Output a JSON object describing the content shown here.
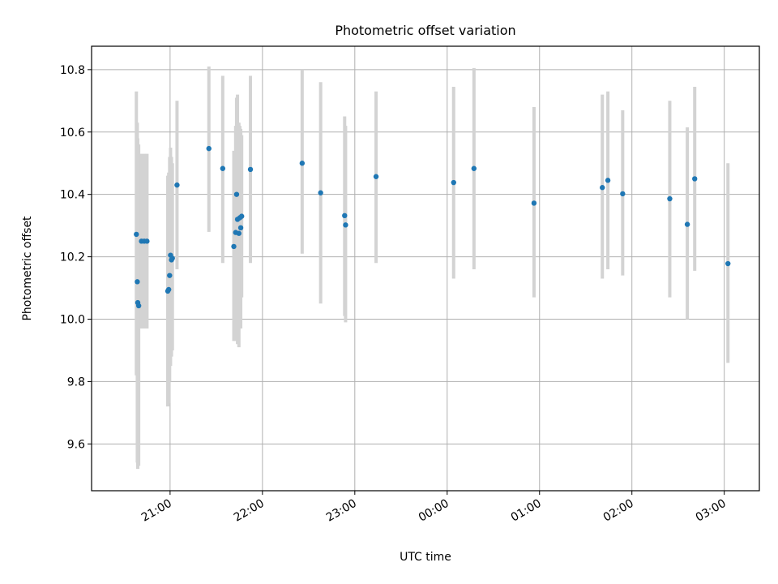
{
  "chart_data": {
    "type": "scatter",
    "title": "Photometric offset variation",
    "xlabel": "UTC time",
    "ylabel": "Photometric offset",
    "x_unit": "hours from 20:00 UTC",
    "xlim": [
      0.15,
      7.38
    ],
    "ylim": [
      9.45,
      10.875
    ],
    "x_ticks": [
      {
        "value": 1,
        "label": "21:00"
      },
      {
        "value": 2,
        "label": "22:00"
      },
      {
        "value": 3,
        "label": "23:00"
      },
      {
        "value": 4,
        "label": "00:00"
      },
      {
        "value": 5,
        "label": "01:00"
      },
      {
        "value": 6,
        "label": "02:00"
      },
      {
        "value": 7,
        "label": "03:00"
      }
    ],
    "y_ticks": [
      {
        "value": 9.6,
        "label": "9.6"
      },
      {
        "value": 9.8,
        "label": "9.8"
      },
      {
        "value": 10.0,
        "label": "10.0"
      },
      {
        "value": 10.2,
        "label": "10.2"
      },
      {
        "value": 10.4,
        "label": "10.4"
      },
      {
        "value": 10.6,
        "label": "10.6"
      },
      {
        "value": 10.8,
        "label": "10.8"
      }
    ],
    "grid": true,
    "marker_color": "#1f77b4",
    "errorbar_color": "#d3d3d3",
    "points": [
      {
        "x": 0.635,
        "y": 10.272,
        "lo": 9.82,
        "hi": 10.73
      },
      {
        "x": 0.645,
        "y": 10.12,
        "lo": 9.54,
        "hi": 10.63
      },
      {
        "x": 0.65,
        "y": 10.053,
        "lo": 9.52,
        "hi": 10.58
      },
      {
        "x": 0.66,
        "y": 10.043,
        "lo": 9.53,
        "hi": 10.56
      },
      {
        "x": 0.69,
        "y": 10.25,
        "lo": 9.97,
        "hi": 10.53
      },
      {
        "x": 0.72,
        "y": 10.25,
        "lo": 9.97,
        "hi": 10.53
      },
      {
        "x": 0.75,
        "y": 10.25,
        "lo": 9.97,
        "hi": 10.53
      },
      {
        "x": 0.975,
        "y": 10.09,
        "lo": 9.72,
        "hi": 10.46
      },
      {
        "x": 0.985,
        "y": 10.095,
        "lo": 9.73,
        "hi": 10.47
      },
      {
        "x": 0.995,
        "y": 10.14,
        "lo": 9.8,
        "hi": 10.52
      },
      {
        "x": 1.005,
        "y": 10.205,
        "lo": 9.85,
        "hi": 10.55
      },
      {
        "x": 1.015,
        "y": 10.19,
        "lo": 9.88,
        "hi": 10.52
      },
      {
        "x": 1.025,
        "y": 10.195,
        "lo": 9.9,
        "hi": 10.5
      },
      {
        "x": 1.075,
        "y": 10.43,
        "lo": 10.16,
        "hi": 10.7
      },
      {
        "x": 1.42,
        "y": 10.547,
        "lo": 10.28,
        "hi": 10.81
      },
      {
        "x": 1.57,
        "y": 10.483,
        "lo": 10.18,
        "hi": 10.78
      },
      {
        "x": 1.69,
        "y": 10.233,
        "lo": 9.93,
        "hi": 10.54
      },
      {
        "x": 1.71,
        "y": 10.278,
        "lo": 9.93,
        "hi": 10.62
      },
      {
        "x": 1.72,
        "y": 10.4,
        "lo": 10.09,
        "hi": 10.71
      },
      {
        "x": 1.73,
        "y": 10.32,
        "lo": 9.92,
        "hi": 10.72
      },
      {
        "x": 1.745,
        "y": 10.275,
        "lo": 9.91,
        "hi": 10.63
      },
      {
        "x": 1.755,
        "y": 10.325,
        "lo": 10.02,
        "hi": 10.62
      },
      {
        "x": 1.765,
        "y": 10.293,
        "lo": 9.97,
        "hi": 10.61
      },
      {
        "x": 1.775,
        "y": 10.33,
        "lo": 10.07,
        "hi": 10.59
      },
      {
        "x": 1.87,
        "y": 10.48,
        "lo": 10.18,
        "hi": 10.78
      },
      {
        "x": 2.43,
        "y": 10.5,
        "lo": 10.21,
        "hi": 10.8
      },
      {
        "x": 2.63,
        "y": 10.405,
        "lo": 10.05,
        "hi": 10.76
      },
      {
        "x": 2.89,
        "y": 10.332,
        "lo": 10.01,
        "hi": 10.65
      },
      {
        "x": 2.9,
        "y": 10.302,
        "lo": 9.99,
        "hi": 10.62
      },
      {
        "x": 3.23,
        "y": 10.457,
        "lo": 10.18,
        "hi": 10.73
      },
      {
        "x": 4.07,
        "y": 10.438,
        "lo": 10.13,
        "hi": 10.745
      },
      {
        "x": 4.29,
        "y": 10.483,
        "lo": 10.16,
        "hi": 10.805
      },
      {
        "x": 4.94,
        "y": 10.372,
        "lo": 10.07,
        "hi": 10.68
      },
      {
        "x": 5.68,
        "y": 10.422,
        "lo": 10.13,
        "hi": 10.72
      },
      {
        "x": 5.74,
        "y": 10.445,
        "lo": 10.16,
        "hi": 10.73
      },
      {
        "x": 5.9,
        "y": 10.402,
        "lo": 10.14,
        "hi": 10.67
      },
      {
        "x": 6.41,
        "y": 10.386,
        "lo": 10.07,
        "hi": 10.7
      },
      {
        "x": 6.6,
        "y": 10.304,
        "lo": 10.0,
        "hi": 10.615
      },
      {
        "x": 6.68,
        "y": 10.45,
        "lo": 10.155,
        "hi": 10.745
      },
      {
        "x": 7.04,
        "y": 10.178,
        "lo": 9.86,
        "hi": 10.5
      }
    ]
  }
}
